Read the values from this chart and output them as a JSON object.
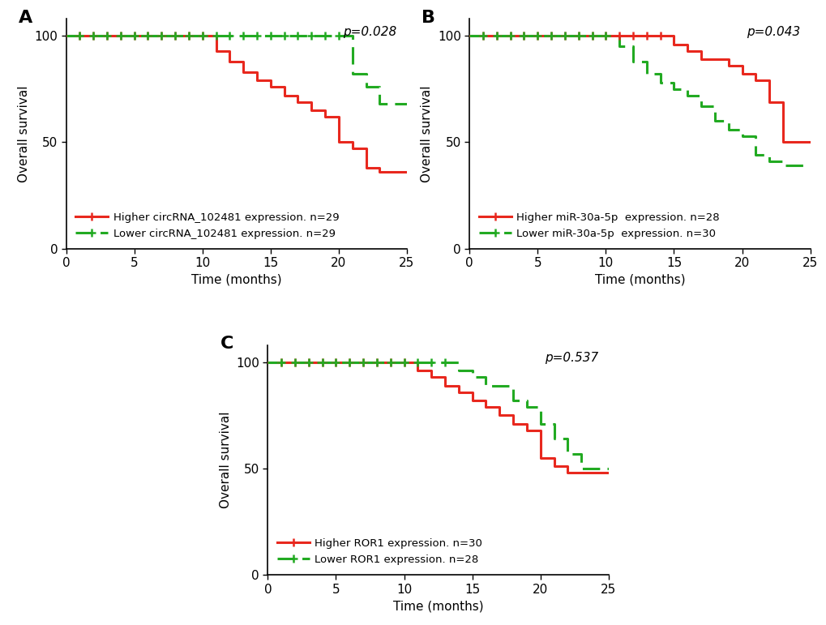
{
  "panel_A": {
    "label": "A",
    "pvalue": "p=0.028",
    "higher_label": "Higher circRNA_102481 expression. n=29",
    "lower_label": "Lower circRNA_102481 expression. n=29",
    "higher_x": [
      0,
      11,
      11,
      12,
      12,
      13,
      13,
      14,
      14,
      15,
      15,
      16,
      16,
      17,
      17,
      18,
      18,
      19,
      19,
      20,
      20,
      21,
      21,
      22,
      22,
      23,
      23,
      25
    ],
    "higher_y": [
      100,
      100,
      93,
      93,
      88,
      88,
      83,
      83,
      79,
      79,
      76,
      76,
      72,
      72,
      69,
      69,
      65,
      65,
      62,
      62,
      50,
      50,
      47,
      47,
      38,
      38,
      36,
      36
    ],
    "higher_censors_x": [
      1,
      2,
      3,
      4,
      5,
      6,
      7,
      8,
      9,
      10
    ],
    "higher_censors_y": [
      100,
      100,
      100,
      100,
      100,
      100,
      100,
      100,
      100,
      100
    ],
    "lower_x": [
      0,
      21,
      21,
      22,
      22,
      23,
      23,
      25
    ],
    "lower_y": [
      100,
      100,
      82,
      82,
      76,
      76,
      68,
      68
    ],
    "lower_censors_x": [
      1,
      2,
      3,
      4,
      5,
      6,
      7,
      8,
      9,
      10,
      11,
      12,
      13,
      14,
      15,
      16,
      17,
      18,
      19,
      20
    ],
    "lower_censors_y": [
      100,
      100,
      100,
      100,
      100,
      100,
      100,
      100,
      100,
      100,
      100,
      100,
      100,
      100,
      100,
      100,
      100,
      100,
      100,
      100
    ]
  },
  "panel_B": {
    "label": "B",
    "pvalue": "p=0.043",
    "higher_label": "Higher miR-30a-5p  expression. n=28",
    "lower_label": "Lower miR-30a-5p  expression. n=30",
    "higher_x": [
      0,
      15,
      15,
      16,
      16,
      17,
      17,
      19,
      19,
      20,
      20,
      21,
      21,
      22,
      22,
      23,
      23,
      25
    ],
    "higher_y": [
      100,
      100,
      96,
      96,
      93,
      93,
      89,
      89,
      86,
      86,
      82,
      82,
      79,
      79,
      69,
      69,
      50,
      50
    ],
    "higher_censors_x": [
      1,
      2,
      3,
      4,
      5,
      6,
      7,
      8,
      9,
      10,
      11,
      12,
      13,
      14
    ],
    "higher_censors_y": [
      100,
      100,
      100,
      100,
      100,
      100,
      100,
      100,
      100,
      100,
      100,
      100,
      100,
      100
    ],
    "lower_x": [
      0,
      11,
      11,
      12,
      12,
      13,
      13,
      14,
      14,
      15,
      15,
      16,
      16,
      17,
      17,
      18,
      18,
      19,
      19,
      20,
      20,
      21,
      21,
      22,
      22,
      23,
      23,
      25
    ],
    "lower_y": [
      100,
      100,
      95,
      95,
      88,
      88,
      82,
      82,
      78,
      78,
      75,
      75,
      72,
      72,
      67,
      67,
      60,
      60,
      56,
      56,
      53,
      53,
      44,
      44,
      41,
      41,
      39,
      39
    ],
    "lower_censors_x": [
      1,
      2,
      3,
      4,
      5,
      6,
      7,
      8,
      9,
      10
    ],
    "lower_censors_y": [
      100,
      100,
      100,
      100,
      100,
      100,
      100,
      100,
      100,
      100
    ]
  },
  "panel_C": {
    "label": "C",
    "pvalue": "p=0.537",
    "higher_label": "Higher ROR1 expression. n=30",
    "lower_label": "Lower ROR1 expression. n=28",
    "higher_x": [
      0,
      11,
      11,
      12,
      12,
      13,
      13,
      14,
      14,
      15,
      15,
      16,
      16,
      17,
      17,
      18,
      18,
      19,
      19,
      20,
      20,
      21,
      21,
      22,
      22,
      23,
      23,
      25
    ],
    "higher_y": [
      100,
      100,
      96,
      96,
      93,
      93,
      89,
      89,
      86,
      86,
      82,
      82,
      79,
      79,
      75,
      75,
      71,
      71,
      68,
      68,
      55,
      55,
      51,
      51,
      48,
      48,
      48,
      48
    ],
    "higher_censors_x": [
      1,
      2,
      3,
      4,
      5,
      6,
      7,
      8,
      9,
      10
    ],
    "higher_censors_y": [
      100,
      100,
      100,
      100,
      100,
      100,
      100,
      100,
      100,
      100
    ],
    "lower_x": [
      0,
      14,
      14,
      15,
      15,
      16,
      16,
      18,
      18,
      19,
      19,
      20,
      20,
      21,
      21,
      22,
      22,
      23,
      23,
      25
    ],
    "lower_y": [
      100,
      100,
      96,
      96,
      93,
      93,
      89,
      89,
      82,
      82,
      79,
      79,
      71,
      71,
      64,
      64,
      57,
      57,
      50,
      50
    ],
    "lower_censors_x": [
      1,
      2,
      3,
      4,
      5,
      6,
      7,
      8,
      9,
      10,
      11,
      12,
      13
    ],
    "lower_censors_y": [
      100,
      100,
      100,
      100,
      100,
      100,
      100,
      100,
      100,
      100,
      100,
      100,
      100
    ]
  },
  "higher_color": "#E8281E",
  "lower_color": "#22AA22",
  "xlabel": "Time (months)",
  "ylabel": "Overall survival",
  "xlim": [
    0,
    25
  ],
  "ylim": [
    0,
    108
  ],
  "xticks": [
    0,
    5,
    10,
    15,
    20,
    25
  ],
  "yticks": [
    0,
    50,
    100
  ],
  "bg_color": "#ffffff",
  "censor_marker_size": 7,
  "linewidth": 2.2,
  "pvalue_x": 0.97,
  "pvalue_y": 0.97,
  "legend_fontsize": 9.5,
  "axis_fontsize": 11,
  "tick_fontsize": 11,
  "label_fontsize": 16
}
